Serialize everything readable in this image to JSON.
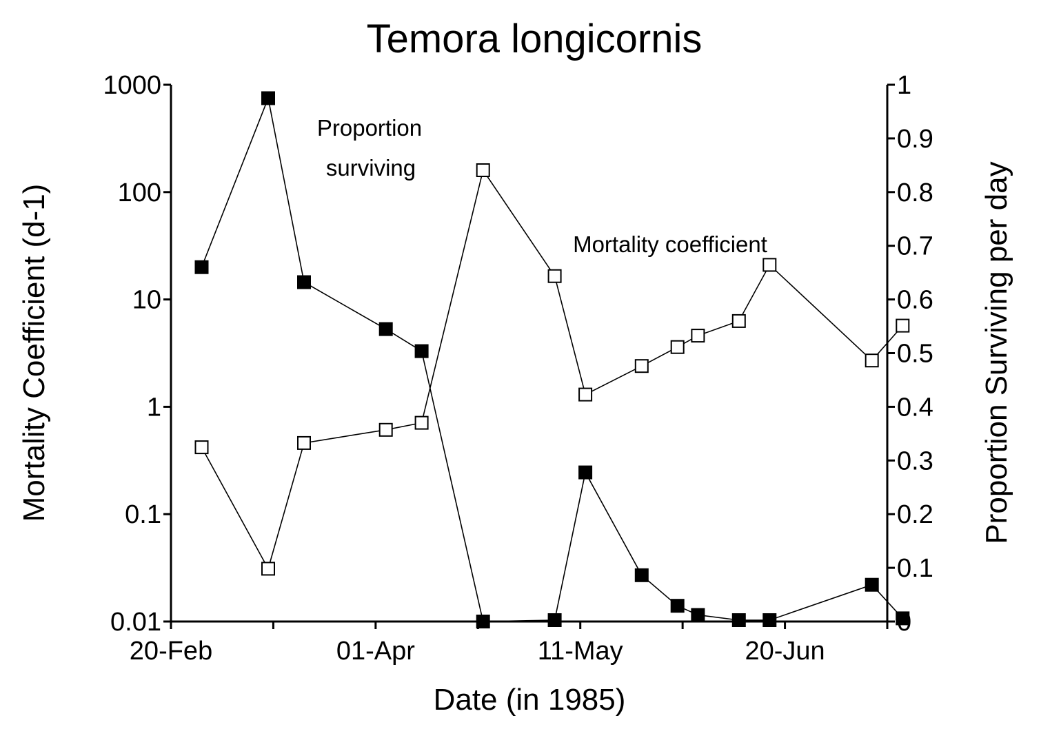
{
  "chart_data": {
    "type": "line",
    "title": "Temora longicornis",
    "xlabel": "Date (in 1985)",
    "ylabel_left": "Mortality Coefficient (d-1)",
    "ylabel_right": "Proportion Surviving per day",
    "x_ticks": [
      {
        "date": "1985-02-20",
        "label": "20-Feb"
      },
      {
        "date": "1985-03-12",
        "label": ""
      },
      {
        "date": "1985-04-01",
        "label": "01-Apr"
      },
      {
        "date": "1985-04-21",
        "label": ""
      },
      {
        "date": "1985-05-11",
        "label": "11-May"
      },
      {
        "date": "1985-05-31",
        "label": ""
      },
      {
        "date": "1985-06-20",
        "label": "20-Jun"
      },
      {
        "date": "1985-07-10",
        "label": ""
      }
    ],
    "xlim": [
      "1985-02-20",
      "1985-07-10"
    ],
    "y_left": {
      "scale": "log",
      "lim": [
        0.01,
        1000
      ],
      "ticks": [
        0.01,
        0.1,
        1,
        10,
        100,
        1000
      ],
      "tick_labels": [
        "0.01",
        "0.1",
        "1",
        "10",
        "100",
        "1000"
      ]
    },
    "y_right": {
      "scale": "linear",
      "lim": [
        0,
        1
      ],
      "ticks": [
        0,
        0.1,
        0.2,
        0.3,
        0.4,
        0.5,
        0.6,
        0.7,
        0.8,
        0.9,
        1
      ],
      "tick_labels": [
        "0",
        "0.1",
        "0.2",
        "0.3",
        "0.4",
        "0.5",
        "0.6",
        "0.7",
        "0.8",
        "0.9",
        "1"
      ]
    },
    "series": [
      {
        "name": "Proportion surviving",
        "axis": "left",
        "marker": "filled-square",
        "x": [
          "1985-02-26",
          "1985-03-11",
          "1985-03-18",
          "1985-04-03",
          "1985-04-10",
          "1985-04-22",
          "1985-05-06",
          "1985-05-12",
          "1985-05-23",
          "1985-05-30",
          "1985-06-03",
          "1985-06-11",
          "1985-06-17",
          "1985-07-07",
          "1985-07-13"
        ],
        "y": [
          20,
          750,
          14.5,
          5.3,
          3.3,
          0.01,
          0.0103,
          0.245,
          0.027,
          0.014,
          0.0115,
          0.0103,
          0.0103,
          0.022,
          0.0107
        ]
      },
      {
        "name": "Mortality coefficient",
        "axis": "left",
        "marker": "open-square",
        "x": [
          "1985-02-26",
          "1985-03-11",
          "1985-03-18",
          "1985-04-03",
          "1985-04-10",
          "1985-04-22",
          "1985-05-06",
          "1985-05-12",
          "1985-05-23",
          "1985-05-30",
          "1985-06-03",
          "1985-06-11",
          "1985-06-17",
          "1985-07-07",
          "1985-07-13"
        ],
        "y": [
          0.42,
          0.031,
          0.46,
          0.61,
          0.71,
          160,
          16.5,
          1.3,
          2.4,
          3.6,
          4.6,
          6.3,
          21,
          2.7,
          5.7
        ]
      }
    ],
    "annotations": [
      {
        "text": "Proportion",
        "series": "Proportion surviving"
      },
      {
        "text": "surviving",
        "series": "Proportion surviving"
      },
      {
        "text": "Mortality coefficient",
        "series": "Mortality coefficient"
      }
    ],
    "grid": false,
    "legend": "none"
  }
}
